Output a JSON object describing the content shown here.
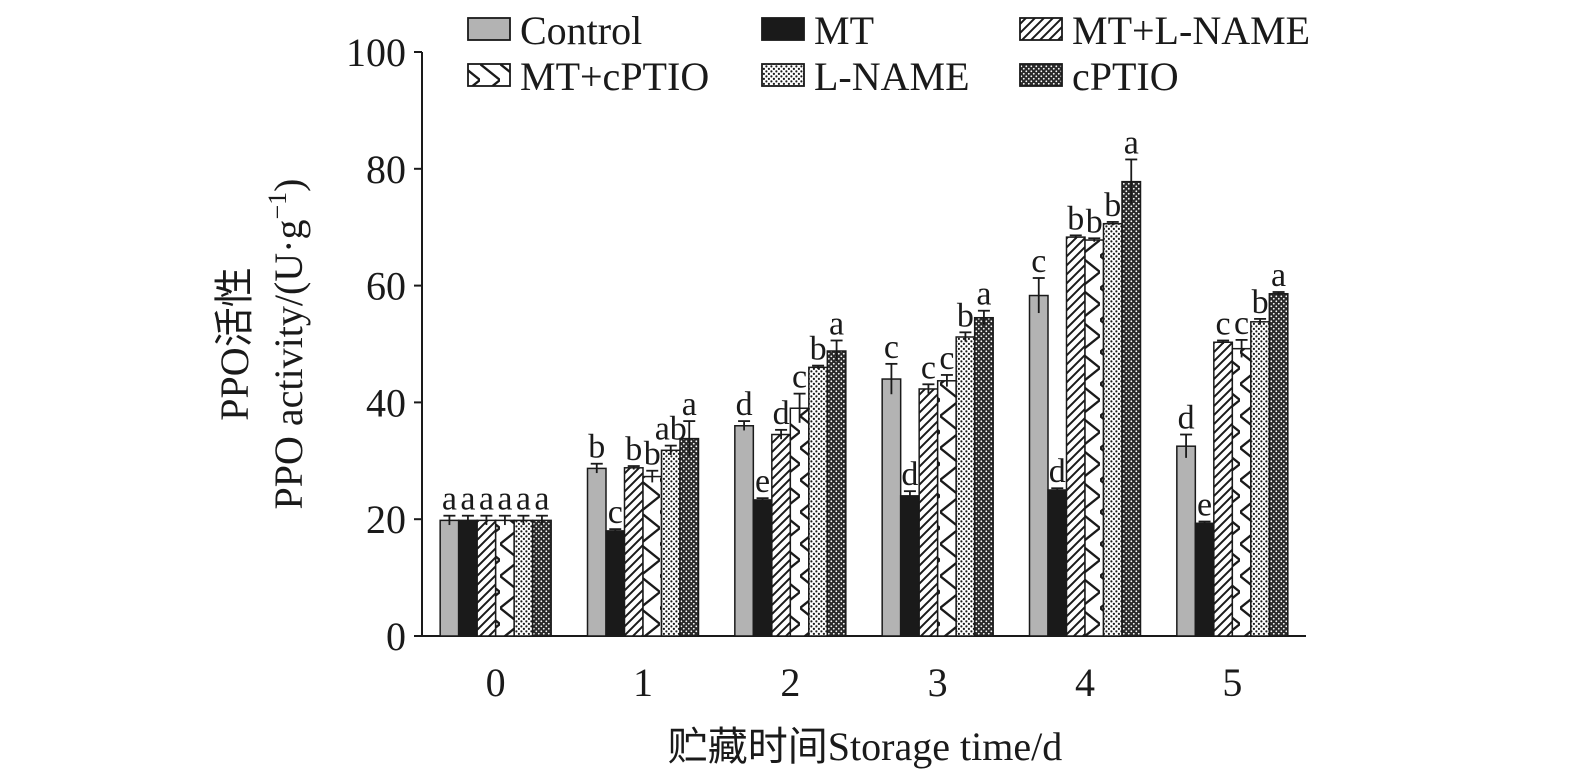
{
  "chart_data": {
    "type": "bar",
    "categories": [
      "0",
      "1",
      "2",
      "3",
      "4",
      "5"
    ],
    "xlabel": "贮藏时间Storage time/d",
    "ylabel_cn": "PPO活性",
    "ylabel_en_main": "PPO activity/(U·g",
    "ylabel_en_sup": "−1",
    "ylabel_en_end": ")",
    "ylim": [
      0,
      100
    ],
    "yticks": [
      "0",
      "20",
      "40",
      "60",
      "80",
      "100"
    ],
    "legend_position": "top",
    "series": [
      {
        "name": "Control",
        "pattern": "solid-gray",
        "color": "#b3b3b3",
        "values": [
          19.8,
          28.7,
          36.0,
          44.0,
          58.3,
          32.5
        ],
        "errors": [
          0.8,
          0.8,
          0.8,
          2.6,
          3.0,
          2.0
        ],
        "labels": [
          "a",
          "b",
          "d",
          "c",
          "c",
          "d"
        ]
      },
      {
        "name": "MT",
        "pattern": "solid-black",
        "color": "#1a1a1a",
        "values": [
          19.8,
          18.0,
          23.3,
          24.0,
          25.0,
          19.3
        ],
        "errors": [
          0.8,
          0.3,
          0.3,
          0.8,
          0.3,
          0.3
        ],
        "labels": [
          "a",
          "c",
          "e",
          "d",
          "d",
          "e"
        ]
      },
      {
        "name": "MT+L-NAME",
        "pattern": "diagonal",
        "color": "#1a1a1a",
        "values": [
          19.8,
          28.8,
          34.5,
          42.3,
          68.3,
          50.3
        ],
        "errors": [
          0.8,
          0.3,
          0.8,
          0.8,
          0.3,
          0.3
        ],
        "labels": [
          "a",
          "b",
          "d",
          "c",
          "b",
          "c"
        ]
      },
      {
        "name": "MT+cPTIO",
        "pattern": "zigzag",
        "color": "#1a1a1a",
        "values": [
          19.8,
          27.3,
          39.0,
          43.7,
          67.8,
          49.2
        ],
        "errors": [
          0.8,
          1.0,
          2.5,
          1.0,
          0.3,
          1.5
        ],
        "labels": [
          "a",
          "b",
          "c",
          "c",
          "b",
          "c"
        ]
      },
      {
        "name": "L-NAME",
        "pattern": "dots",
        "color": "#1a1a1a",
        "values": [
          19.8,
          31.8,
          46.0,
          51.2,
          70.6,
          53.8
        ],
        "errors": [
          0.8,
          0.8,
          0.3,
          0.8,
          0.3,
          0.5
        ],
        "labels": [
          "a",
          "ab",
          "b",
          "b",
          "b",
          "b"
        ]
      },
      {
        "name": "cPTIO",
        "pattern": "dense-dots",
        "color": "#1a1a1a",
        "values": [
          19.8,
          33.8,
          48.8,
          54.5,
          77.8,
          58.6
        ],
        "errors": [
          0.8,
          3.0,
          1.8,
          1.2,
          3.8,
          0.3
        ],
        "labels": [
          "a",
          "a",
          "a",
          "a",
          "a",
          "a"
        ]
      }
    ]
  }
}
